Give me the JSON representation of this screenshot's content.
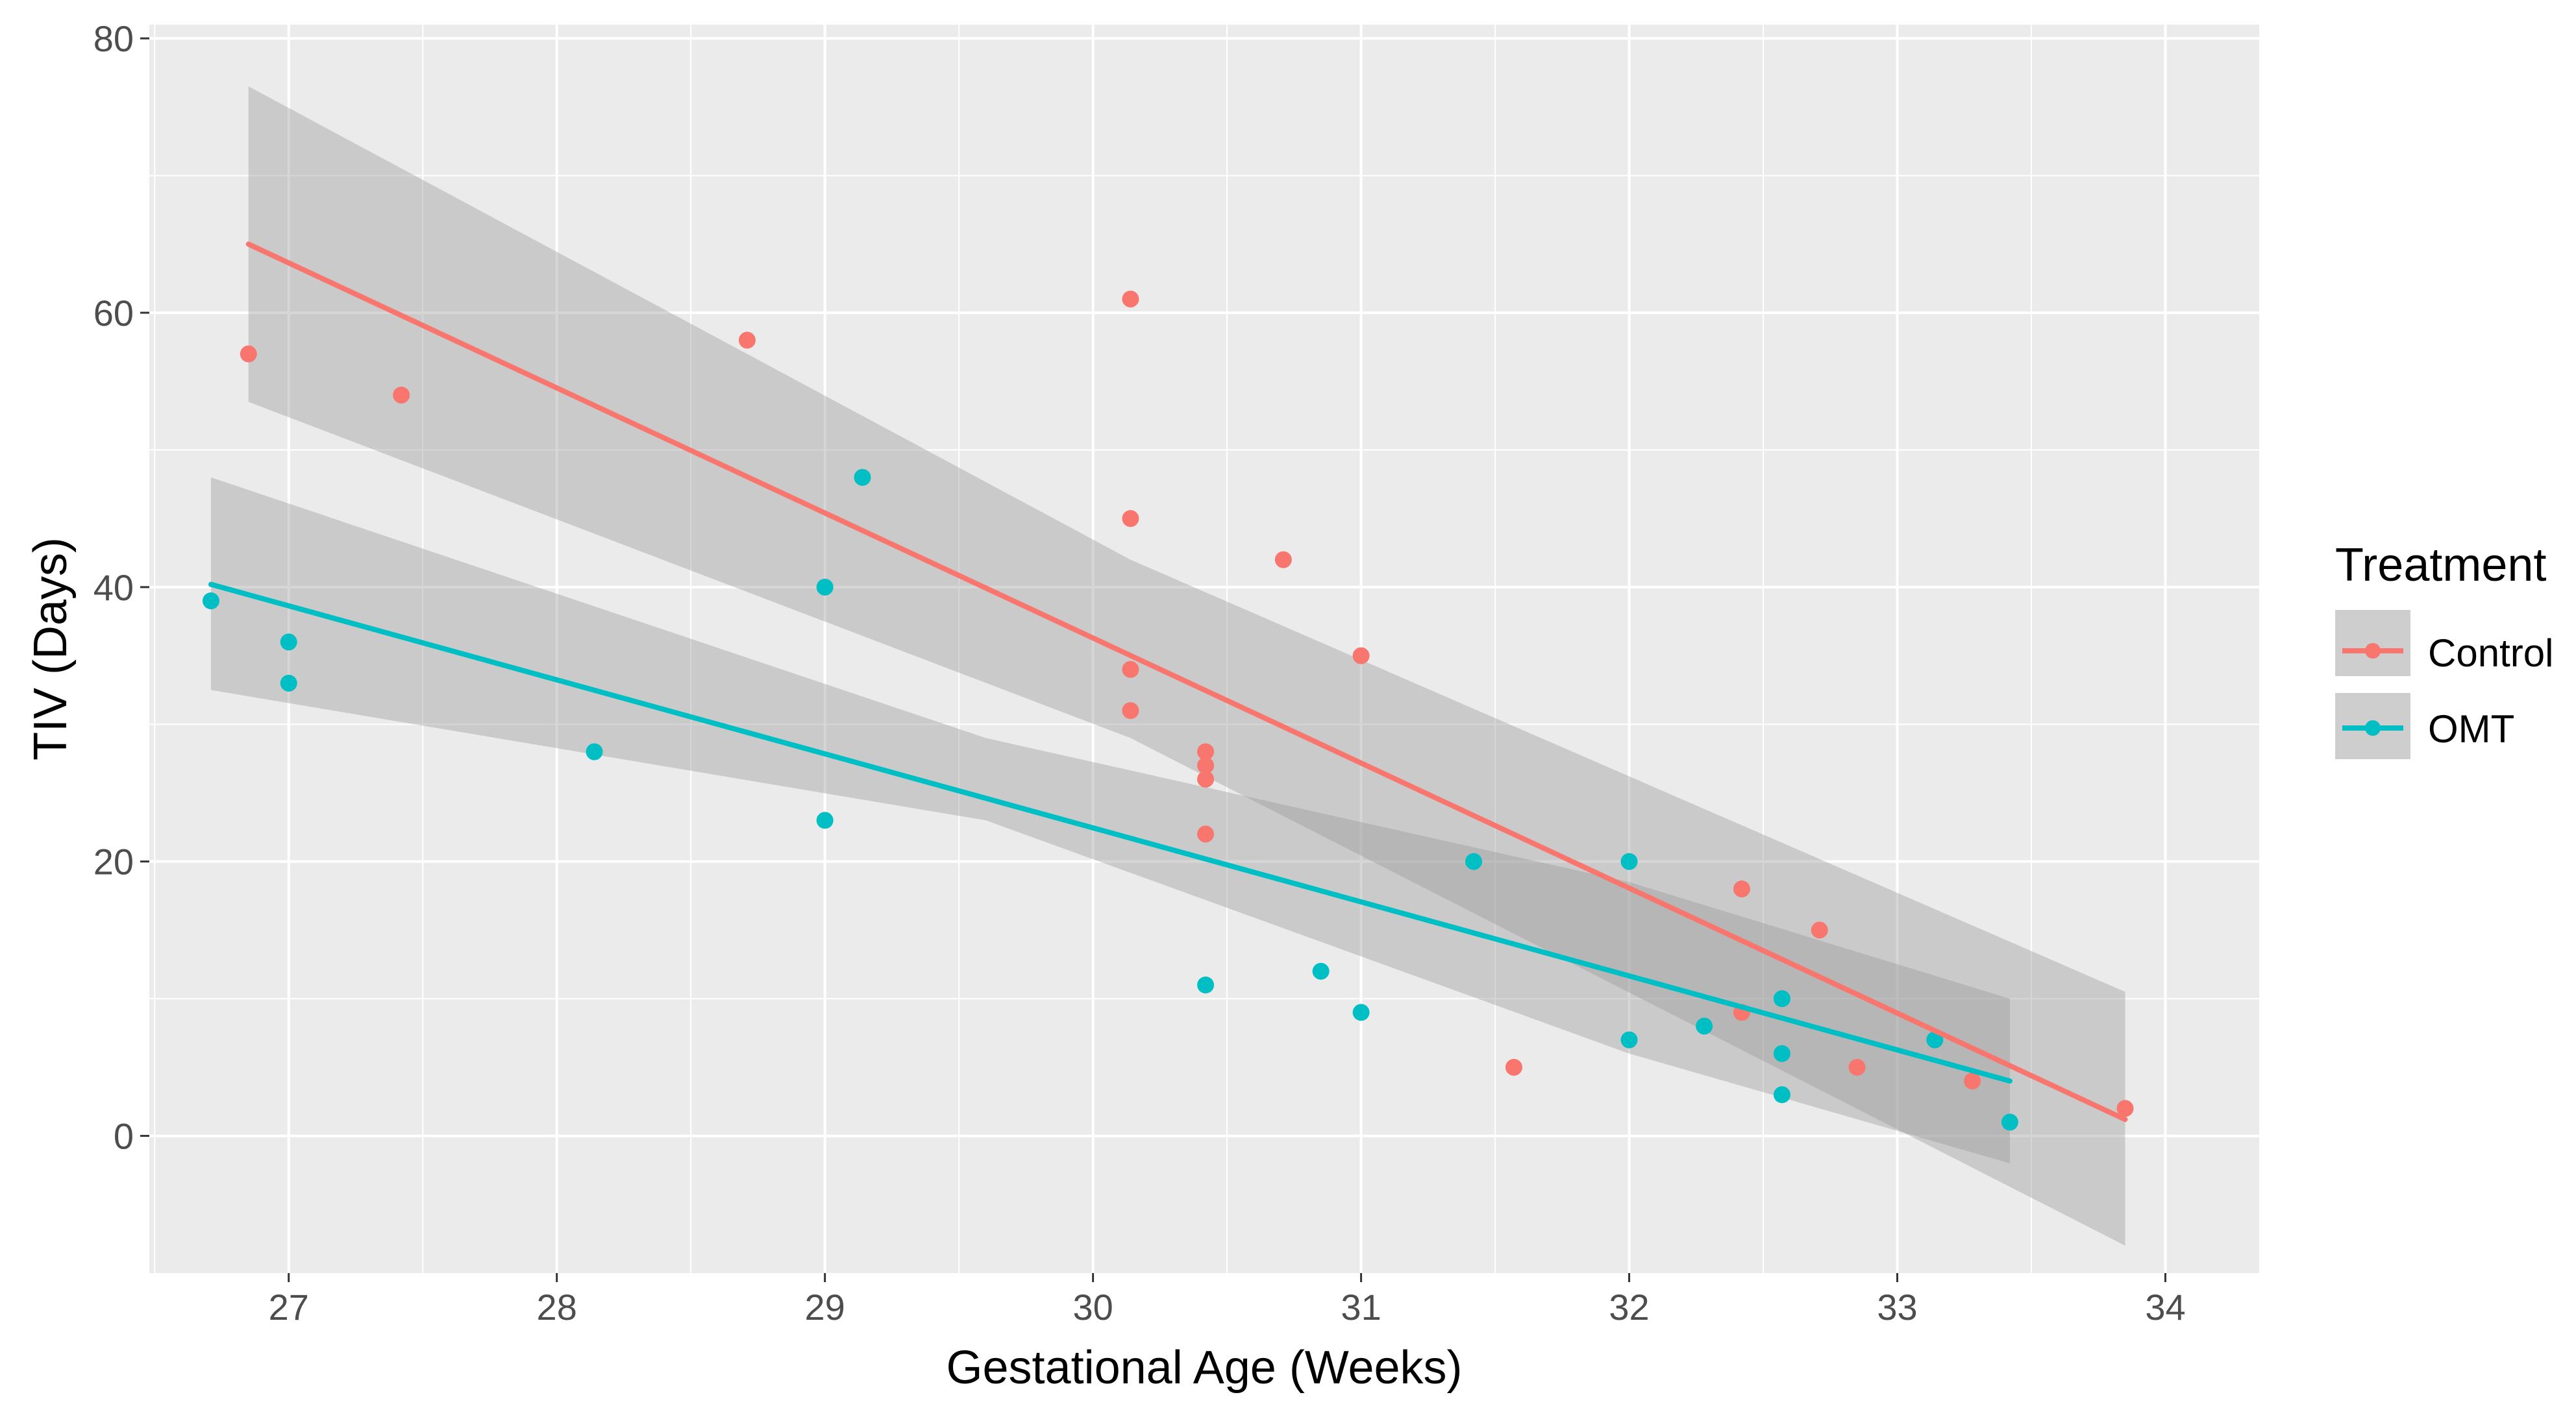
{
  "colors": {
    "control": "#F8766D",
    "omt": "#00BFC4",
    "panel": "#EBEBEB",
    "grid": "#FFFFFF",
    "ribbon": "#999999",
    "text": "#4D4D4D",
    "title": "#000000"
  },
  "chart_data": {
    "type": "scatter",
    "xlabel": "Gestational Age (Weeks)",
    "ylabel": "TIV (Days)",
    "xlim": [
      26.48,
      34.35
    ],
    "ylim": [
      -10,
      81
    ],
    "xticks": [
      27,
      28,
      29,
      30,
      31,
      32,
      33,
      34
    ],
    "yticks": [
      0,
      20,
      40,
      60,
      80
    ],
    "xtick_labels": [
      "27",
      "28",
      "29",
      "30",
      "31",
      "32",
      "33",
      "34"
    ],
    "ytick_labels": [
      "0",
      "20",
      "40",
      "60",
      "80"
    ],
    "legend": {
      "title": "Treatment",
      "position": "right",
      "entries": [
        "Control",
        "OMT"
      ]
    },
    "series": [
      {
        "name": "Control",
        "color": "#F8766D",
        "points": [
          [
            26.85,
            57
          ],
          [
            27.42,
            54
          ],
          [
            28.71,
            58
          ],
          [
            30.14,
            61
          ],
          [
            30.14,
            45
          ],
          [
            30.14,
            34
          ],
          [
            30.14,
            31
          ],
          [
            30.42,
            28
          ],
          [
            30.42,
            27
          ],
          [
            30.42,
            26
          ],
          [
            30.42,
            22
          ],
          [
            30.71,
            42
          ],
          [
            31.0,
            35
          ],
          [
            31.57,
            5
          ],
          [
            32.42,
            18
          ],
          [
            32.42,
            9
          ],
          [
            32.71,
            15
          ],
          [
            32.85,
            5
          ],
          [
            33.28,
            4
          ],
          [
            33.85,
            2
          ]
        ],
        "fit": {
          "x0": 26.85,
          "x1": 33.85,
          "y0": 65,
          "y1": 1.2
        },
        "ribbon_upper": [
          [
            26.85,
            76.5
          ],
          [
            30.14,
            42
          ],
          [
            33.85,
            10.5
          ]
        ],
        "ribbon_lower": [
          [
            26.85,
            53.5
          ],
          [
            30.14,
            29
          ],
          [
            33.85,
            -8
          ]
        ]
      },
      {
        "name": "OMT",
        "color": "#00BFC4",
        "points": [
          [
            26.71,
            39
          ],
          [
            27.0,
            36
          ],
          [
            27.0,
            33
          ],
          [
            28.14,
            28
          ],
          [
            29.0,
            40
          ],
          [
            29.0,
            23
          ],
          [
            29.14,
            48
          ],
          [
            30.42,
            11
          ],
          [
            30.85,
            12
          ],
          [
            31.0,
            9
          ],
          [
            31.42,
            20
          ],
          [
            32.0,
            20
          ],
          [
            32.0,
            7
          ],
          [
            32.28,
            8
          ],
          [
            32.57,
            10
          ],
          [
            32.57,
            6
          ],
          [
            32.57,
            3
          ],
          [
            33.14,
            7
          ],
          [
            33.42,
            1
          ]
        ],
        "fit": {
          "x0": 26.71,
          "x1": 33.42,
          "y0": 40.2,
          "y1": 4
        },
        "ribbon_upper": [
          [
            26.71,
            48
          ],
          [
            29.6,
            29
          ],
          [
            32.0,
            18.5
          ],
          [
            33.42,
            10
          ]
        ],
        "ribbon_lower": [
          [
            26.71,
            32.5
          ],
          [
            29.6,
            23
          ],
          [
            32.0,
            6
          ],
          [
            33.42,
            -2
          ]
        ]
      }
    ]
  }
}
